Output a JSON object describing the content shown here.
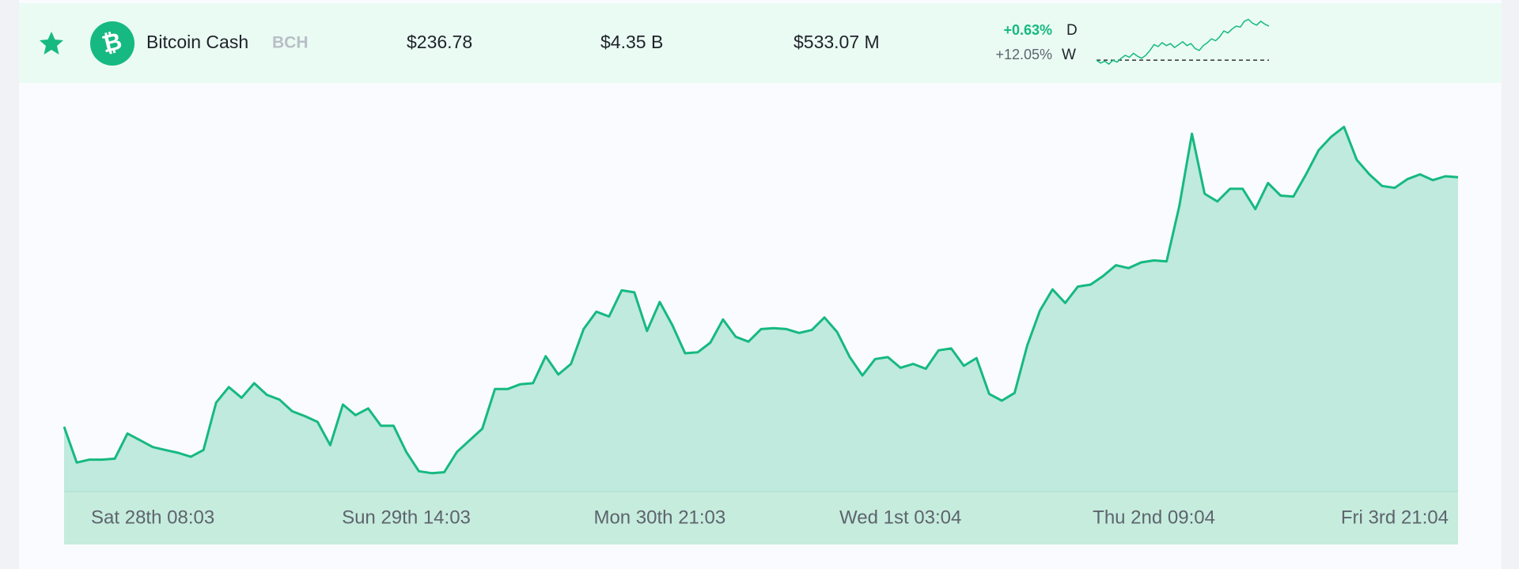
{
  "row": {
    "name": "Bitcoin Cash",
    "symbol": "BCH",
    "price": "$236.78",
    "market_cap": "$4.35 B",
    "volume": "$533.07 M",
    "changes": [
      {
        "value": "+0.63%",
        "period": "D"
      },
      {
        "value": "+12.05%",
        "period": "W"
      }
    ]
  },
  "chart_data": [
    {
      "type": "area",
      "color": "#16b981",
      "ylim": [
        0,
        420
      ],
      "categories": [
        null,
        null,
        null,
        null,
        null,
        null,
        null,
        "Sat 28th 08:03",
        null,
        null,
        null,
        null,
        null,
        null,
        null,
        null,
        null,
        null,
        null,
        null,
        null,
        null,
        null,
        null,
        null,
        null,
        null,
        "Sun 29th 14:03",
        null,
        null,
        null,
        null,
        null,
        null,
        null,
        null,
        null,
        null,
        null,
        null,
        null,
        null,
        null,
        null,
        null,
        null,
        null,
        "Mon 30th 21:03",
        null,
        null,
        null,
        null,
        null,
        null,
        null,
        null,
        null,
        null,
        null,
        null,
        null,
        null,
        null,
        null,
        null,
        null,
        "Wed 1st 03:04",
        null,
        null,
        null,
        null,
        null,
        null,
        null,
        null,
        null,
        null,
        null,
        null,
        null,
        null,
        null,
        null,
        null,
        null,
        null,
        "Thu 2nd 09:04",
        null,
        null,
        null,
        null,
        null,
        null,
        null,
        null,
        null,
        null,
        null,
        null,
        null,
        null,
        null,
        null,
        null,
        null,
        "Fri 3rd 21:04",
        null,
        null,
        null,
        null,
        null
      ],
      "values": [
        67,
        30,
        33,
        33,
        34,
        60,
        53,
        46,
        43,
        40,
        36,
        43,
        92,
        108,
        97,
        112,
        100,
        95,
        83,
        78,
        72,
        48,
        90,
        79,
        86,
        68,
        68,
        41,
        21,
        19,
        20,
        41,
        53,
        65,
        106,
        106,
        111,
        112,
        140,
        121,
        132,
        168,
        186,
        181,
        208,
        206,
        166,
        196,
        172,
        143,
        144,
        154,
        178,
        160,
        155,
        168,
        169,
        168,
        164,
        167,
        180,
        165,
        139,
        120,
        137,
        139,
        128,
        132,
        127,
        146,
        148,
        130,
        138,
        101,
        94,
        102,
        151,
        187,
        209,
        195,
        212,
        214,
        223,
        234,
        231,
        237,
        239,
        238,
        295,
        370,
        308,
        300,
        313,
        313,
        292,
        319,
        306,
        305,
        328,
        353,
        367,
        377,
        343,
        328,
        316,
        314,
        323,
        328,
        322,
        326,
        325
      ]
    },
    {
      "type": "sparkline",
      "color": "#16b981",
      "ylim": [
        0,
        52
      ],
      "values": [
        8,
        5,
        7,
        4,
        8,
        6,
        10,
        13,
        11,
        15,
        12,
        10,
        13,
        18,
        24,
        22,
        26,
        23,
        25,
        21,
        24,
        27,
        23,
        25,
        20,
        18,
        23,
        26,
        30,
        28,
        32,
        38,
        36,
        40,
        43,
        42,
        48,
        50,
        46,
        44,
        48,
        45,
        43
      ]
    }
  ]
}
